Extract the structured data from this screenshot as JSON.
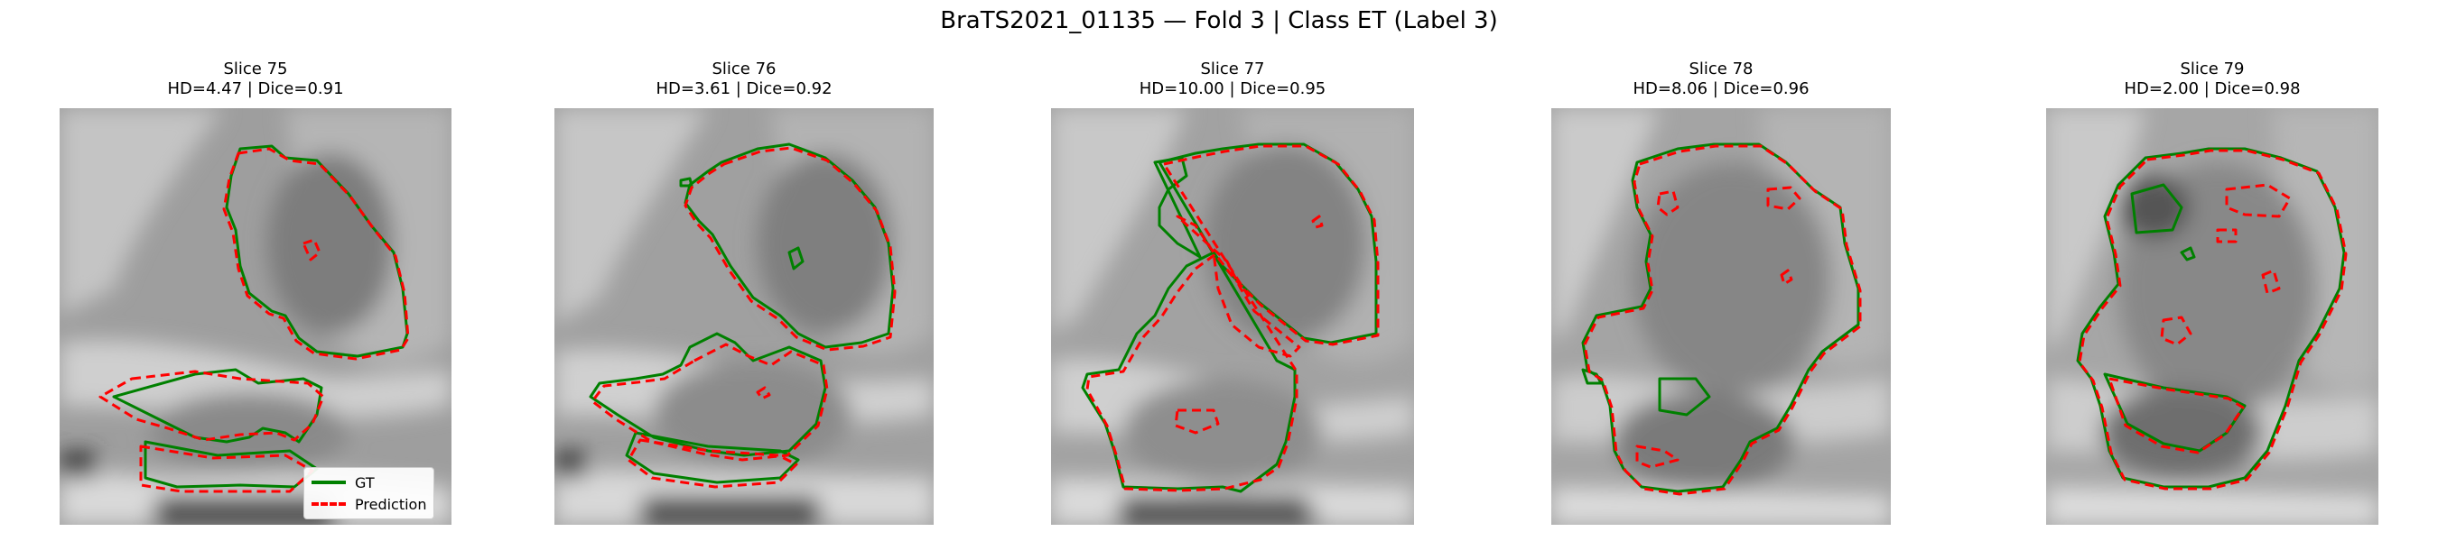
{
  "title": "BraTS2021_01135 — Fold 3 | Class ET (Label 3)",
  "panels": [
    {
      "slice": "Slice 75",
      "metrics": "HD=4.47 | Dice=0.91"
    },
    {
      "slice": "Slice 76",
      "metrics": "HD=3.61 | Dice=0.92"
    },
    {
      "slice": "Slice 77",
      "metrics": "HD=10.00 | Dice=0.95"
    },
    {
      "slice": "Slice 78",
      "metrics": "HD=8.06 | Dice=0.96"
    },
    {
      "slice": "Slice 79",
      "metrics": "HD=2.00 | Dice=0.98"
    }
  ],
  "legend": {
    "gt": {
      "label": "GT",
      "color": "#008000"
    },
    "pred": {
      "label": "Prediction",
      "color": "#ff0000"
    }
  },
  "colors": {
    "gt": "#008000",
    "prediction": "#ff0000"
  }
}
